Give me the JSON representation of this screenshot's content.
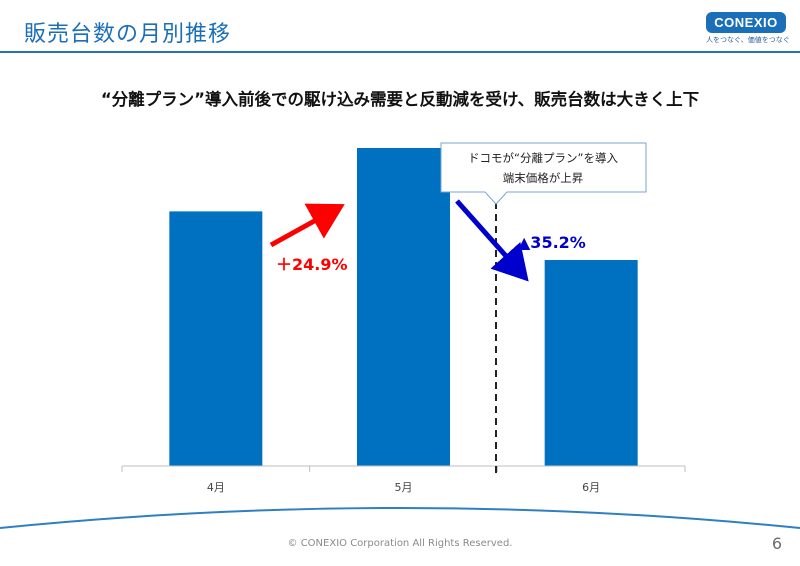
{
  "slide_title": "販売台数の月別推移",
  "logo": {
    "text": "CONEXIO",
    "tagline": "人をつなぐ、価値をつなぐ"
  },
  "headline": "“分離プラン”導入前後での駆け込み需要と反動減を受け、販売台数は大きく上下",
  "chart_data": {
    "type": "bar",
    "categories": [
      "4月",
      "5月",
      "6月"
    ],
    "values": [
      100,
      124.9,
      80.9
    ],
    "ylim": [
      0,
      130
    ],
    "grid": false,
    "bar_color": "#0070c0",
    "annotations": [
      {
        "label": "＋24.9%",
        "color": "#ff0000"
      },
      {
        "label": "▲35.2%",
        "color": "#0000cc"
      }
    ],
    "callout": {
      "line1": "ドコモが“分離プラン”を導入",
      "line2": "端末価格が上昇"
    }
  },
  "footer": {
    "copyright": "© CONEXIO Corporation All Rights Reserved.",
    "page_number": "6"
  }
}
